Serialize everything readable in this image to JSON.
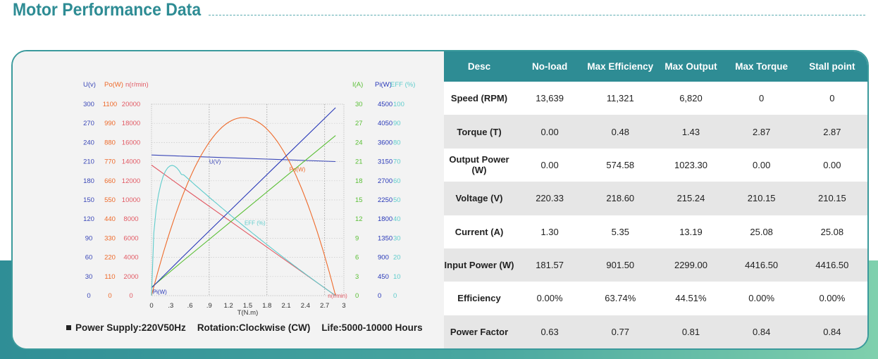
{
  "page_title": "Motor Performance Data",
  "colors": {
    "teal": "#2e8c94",
    "u_line": "#3b48b8",
    "po_line": "#ee6a2a",
    "n_line": "#e25a64",
    "i_line": "#5abf35",
    "pi_line": "#2838b8",
    "eff_line": "#5fcccc"
  },
  "footnote": {
    "power_supply": "Power Supply:220V50Hz",
    "rotation": "Rotation:Clockwise (CW)",
    "life": "Life:5000-10000 Hours"
  },
  "table": {
    "headers": [
      "Desc",
      "No-load",
      "Max Efficiency",
      "Max Output",
      "Max Torque",
      "Stall point"
    ],
    "rows": [
      [
        "Speed (RPM)",
        "13,639",
        "11,321",
        "6,820",
        "0",
        "0"
      ],
      [
        "Torque (T)",
        "0.00",
        "0.48",
        "1.43",
        "2.87",
        "2.87"
      ],
      [
        "Output Power (W)",
        "0.00",
        "574.58",
        "1023.30",
        "0.00",
        "0.00"
      ],
      [
        "Voltage (V)",
        "220.33",
        "218.60",
        "215.24",
        "210.15",
        "210.15"
      ],
      [
        "Current (A)",
        "1.30",
        "5.35",
        "13.19",
        "25.08",
        "25.08"
      ],
      [
        "Input Power (W)",
        "181.57",
        "901.50",
        "2299.00",
        "4416.50",
        "4416.50"
      ],
      [
        "Efficiency",
        "0.00%",
        "63.74%",
        "44.51%",
        "0.00%",
        "0.00%"
      ],
      [
        "Power Factor",
        "0.63",
        "0.77",
        "0.81",
        "0.84",
        "0.84"
      ]
    ]
  },
  "chart_data": {
    "type": "line",
    "xlabel": "T(N.m)",
    "x_ticks": [
      "0",
      ".3",
      ".6",
      ".9",
      "1.2",
      "1.5",
      "1.8",
      "2.1",
      "2.4",
      "2.7",
      "3"
    ],
    "xlim": [
      0,
      3
    ],
    "grid": true,
    "left_axes": [
      {
        "header": "U(v)",
        "ticks": [
          "0",
          "30",
          "60",
          "90",
          "120",
          "150",
          "180",
          "210",
          "240",
          "270",
          "300"
        ],
        "range": [
          0,
          300
        ]
      },
      {
        "header": "Po(W)",
        "ticks": [
          "0",
          "110",
          "220",
          "330",
          "440",
          "550",
          "660",
          "770",
          "880",
          "990",
          "1100"
        ],
        "range": [
          0,
          1100
        ]
      },
      {
        "header": "n(r/min)",
        "ticks": [
          "0",
          "2000",
          "4000",
          "6000",
          "8000",
          "10000",
          "12000",
          "14000",
          "16000",
          "18000",
          "20000"
        ],
        "range": [
          0,
          20000
        ]
      }
    ],
    "right_axes": [
      {
        "header": "I(A)",
        "ticks": [
          "0",
          "3",
          "6",
          "9",
          "12",
          "15",
          "18",
          "21",
          "24",
          "27",
          "30"
        ],
        "range": [
          0,
          30
        ]
      },
      {
        "header": "Pi(W)",
        "ticks": [
          "0",
          "450",
          "900",
          "1350",
          "1800",
          "2250",
          "2700",
          "3150",
          "3600",
          "4050",
          "4500"
        ],
        "range": [
          0,
          4500
        ]
      },
      {
        "header": "EFF (%)",
        "ticks": [
          "0",
          "10",
          "20",
          "30",
          "40",
          "50",
          "60",
          "70",
          "80",
          "90",
          "100"
        ],
        "range": [
          0,
          100
        ]
      }
    ],
    "series": [
      {
        "name": "U(v)",
        "axis": "U",
        "x": [
          0,
          0.48,
          1.43,
          2.87
        ],
        "y": [
          220.33,
          218.6,
          215.24,
          210.15
        ]
      },
      {
        "name": "Po(W)",
        "axis": "Po",
        "x": [
          0,
          0.48,
          1.43,
          2.87
        ],
        "y": [
          0,
          574.58,
          1023.3,
          0
        ]
      },
      {
        "name": "n(r/min)",
        "axis": "n",
        "x": [
          0,
          0.48,
          1.43,
          2.87
        ],
        "y": [
          13639,
          11321,
          6820,
          0
        ]
      },
      {
        "name": "I(A)",
        "axis": "I",
        "x": [
          0,
          0.48,
          1.43,
          2.87
        ],
        "y": [
          1.3,
          5.35,
          13.19,
          25.08
        ]
      },
      {
        "name": "Pi(W)",
        "axis": "Pi",
        "x": [
          0,
          0.48,
          1.43,
          2.87
        ],
        "y": [
          181.57,
          901.5,
          2299.0,
          4416.5
        ]
      },
      {
        "name": "EFF (%)",
        "axis": "EFF",
        "x": [
          0,
          0.48,
          1.43,
          2.87
        ],
        "y": [
          0,
          63.74,
          44.51,
          0
        ]
      }
    ]
  }
}
